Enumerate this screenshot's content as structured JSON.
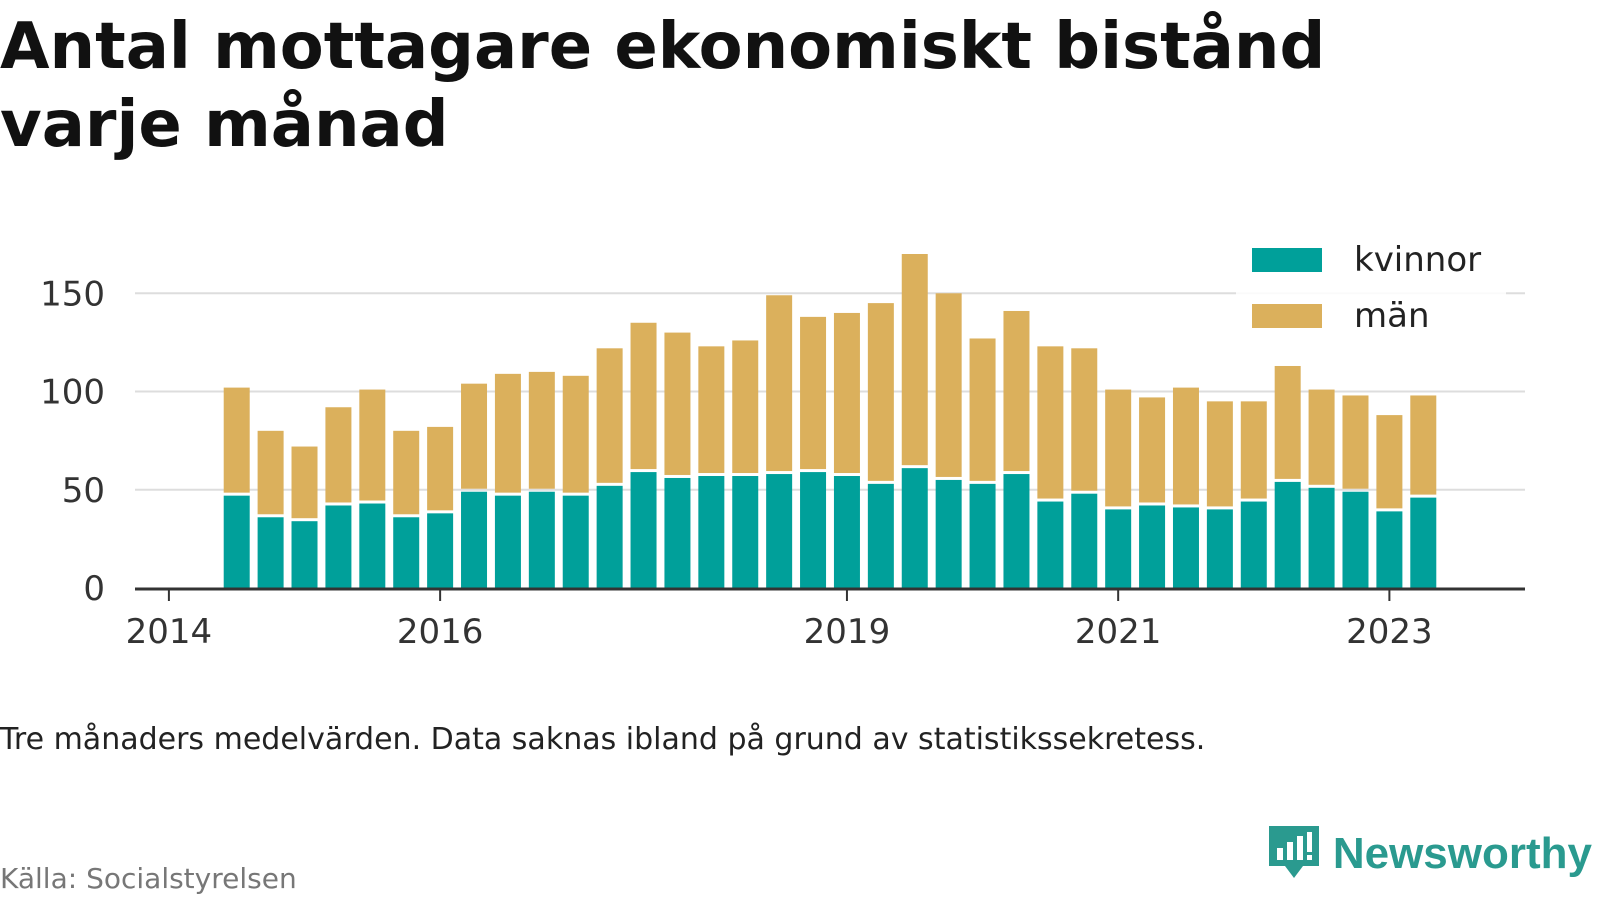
{
  "title": "Antal mottagare ekonomiskt bistånd varje månad",
  "note": "Tre månaders medelvärden. Data saknas ibland på grund av statistikssekretess.",
  "source": "Källa: Socialstyrelsen",
  "brand": {
    "name": "Newsworthy",
    "icon": "newsworthy-logo-icon"
  },
  "colors": {
    "kvinnor": "#00a09a",
    "man": "#dbb05c",
    "grid": "#dddddd",
    "axis": "#333333"
  },
  "chart_data": {
    "type": "bar",
    "stacked": true,
    "title": "Antal mottagare ekonomiskt bistånd varje månad",
    "xlabel": "",
    "ylabel": "",
    "ylim": [
      0,
      170
    ],
    "yticks": [
      0,
      50,
      100,
      150
    ],
    "xticks": [
      "2014",
      "2016",
      "2019",
      "2021",
      "2023"
    ],
    "grid": true,
    "legend": "top-right",
    "categories": [
      "2014-07",
      "2014-10",
      "2015-01",
      "2015-04",
      "2015-07",
      "2015-10",
      "2016-01",
      "2016-04",
      "2016-07",
      "2016-10",
      "2017-01",
      "2017-04",
      "2017-07",
      "2017-10",
      "2018-01",
      "2018-04",
      "2018-07",
      "2018-10",
      "2019-01",
      "2019-04",
      "2019-07",
      "2019-10",
      "2020-01",
      "2020-04",
      "2020-07",
      "2020-10",
      "2021-01",
      "2021-04",
      "2021-07",
      "2021-10",
      "2022-01",
      "2022-04",
      "2022-07",
      "2022-10",
      "2023-01",
      "2023-04"
    ],
    "series": [
      {
        "name": "kvinnor",
        "values": [
          47,
          36,
          34,
          42,
          43,
          36,
          38,
          49,
          47,
          49,
          47,
          52,
          59,
          56,
          57,
          57,
          58,
          59,
          57,
          53,
          61,
          55,
          53,
          58,
          44,
          48,
          40,
          42,
          41,
          40,
          44,
          54,
          51,
          49,
          39,
          46
        ]
      },
      {
        "name": "män",
        "values": [
          55,
          44,
          38,
          50,
          58,
          44,
          44,
          55,
          62,
          61,
          61,
          70,
          76,
          74,
          66,
          69,
          91,
          79,
          83,
          92,
          109,
          95,
          74,
          83,
          79,
          74,
          61,
          55,
          61,
          55,
          51,
          59,
          50,
          49,
          49,
          52
        ]
      }
    ]
  }
}
